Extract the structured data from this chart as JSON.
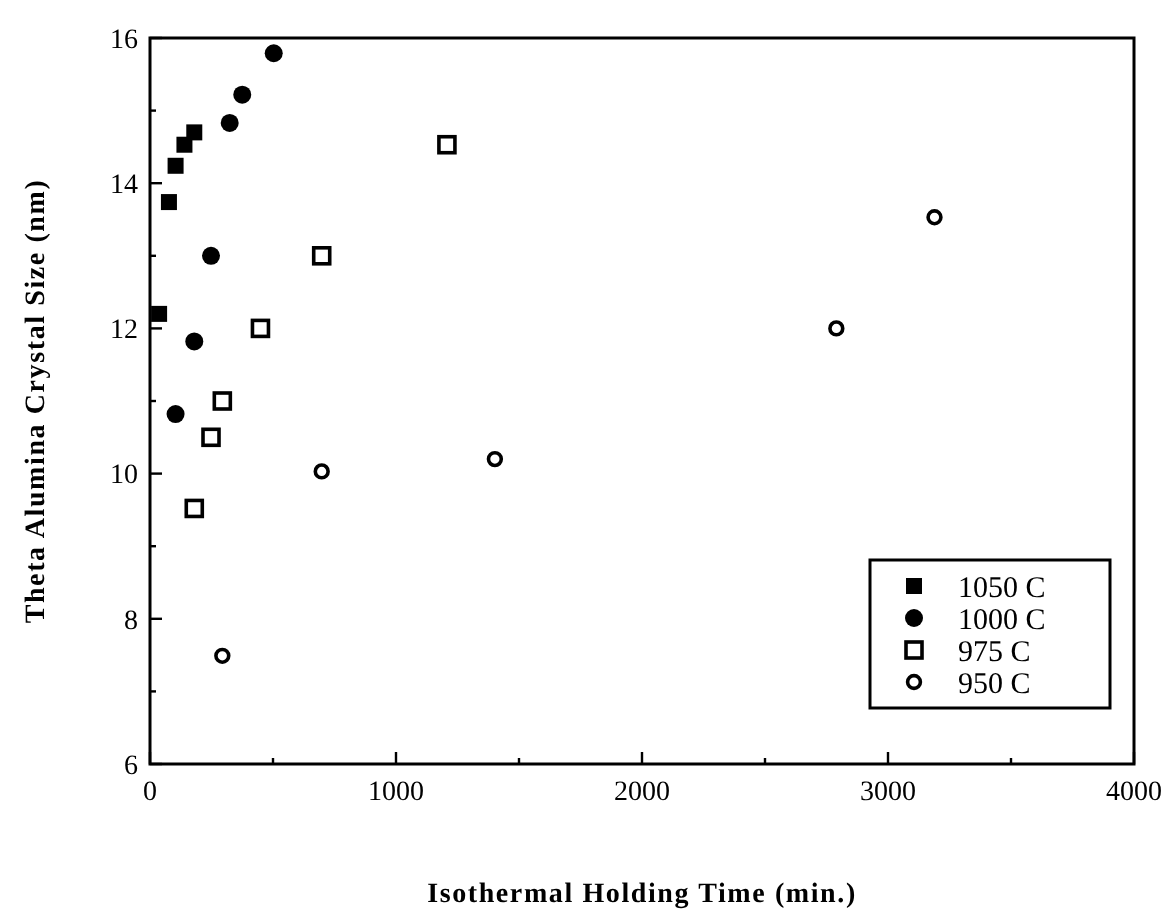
{
  "chart_data": {
    "type": "scatter",
    "xlabel": "Isothermal Holding Time (min.)",
    "ylabel": "Theta Alumina Crystal Size (nm)",
    "xlim": [
      0,
      4000
    ],
    "xticks": [
      0,
      {
        "value": 500,
        "label": null
      },
      1000,
      {
        "value": 1500,
        "label": null
      },
      2000,
      {
        "value": 2500,
        "label": null
      },
      3000,
      {
        "value": 3500,
        "label": null
      },
      4000
    ],
    "ylim": [
      6,
      16
    ],
    "yticks": [
      6,
      {
        "value": 7,
        "label": null
      },
      8,
      {
        "value": 9,
        "label": null
      },
      10,
      {
        "value": 11,
        "label": null
      },
      12,
      {
        "value": 13,
        "label": null
      },
      14,
      {
        "value": 15,
        "label": null
      },
      16
    ],
    "grid": false,
    "legend": "bottom right",
    "series": [
      {
        "name": "1050 C",
        "color": "#000000",
        "marker": "square",
        "x": [
          37,
          77,
          104,
          140,
          180
        ],
        "values": [
          12.2,
          13.74,
          14.24,
          14.53,
          14.7
        ]
      },
      {
        "name": "1000 C",
        "color": "#000000",
        "marker": "circle",
        "x": [
          104,
          180,
          248,
          324,
          375,
          503
        ],
        "values": [
          10.82,
          11.82,
          13.0,
          14.83,
          15.22,
          15.79
        ]
      },
      {
        "name": "975 C",
        "color": "#000000",
        "marker": "square-open",
        "x": [
          180,
          248,
          294,
          449,
          698,
          1207
        ],
        "values": [
          9.52,
          10.5,
          11.0,
          12.0,
          13.0,
          14.53
        ]
      },
      {
        "name": "950 C",
        "color": "#000000",
        "marker": "circle-open",
        "x": [
          294,
          698,
          1402,
          2790,
          3189
        ],
        "values": [
          7.49,
          10.03,
          10.2,
          12.0,
          13.53
        ]
      }
    ]
  }
}
